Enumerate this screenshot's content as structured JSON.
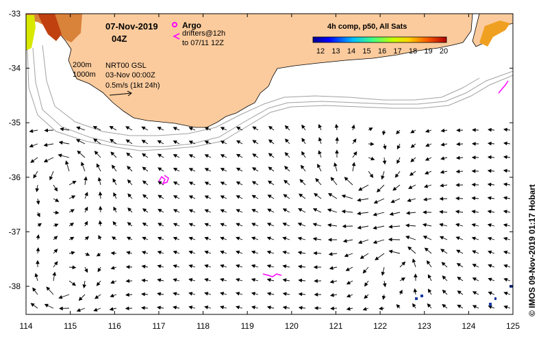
{
  "map": {
    "date": "07-Nov-2019",
    "time": "04Z",
    "legend": {
      "argo_label": "Argo",
      "drifters_label": "drifters@12h",
      "drifters_to": "to 07/11 12Z",
      "isobath_200": "200m",
      "isobath_1000": "1000m",
      "product": "NRT00 GSL",
      "product_date": "03-Nov 00:00Z",
      "scale_label": "0.5m/s (1kt 24h)"
    },
    "colorbar": {
      "title": "4h comp, p50, All Sats",
      "ticks": [
        "12",
        "13",
        "14",
        "15",
        "16",
        "17",
        "18",
        "19",
        "20"
      ]
    },
    "lon_ticks": [
      "114",
      "115",
      "116",
      "117",
      "118",
      "119",
      "120",
      "121",
      "122",
      "123",
      "124",
      "125"
    ],
    "lat_ticks": [
      "-33",
      "-34",
      "-35",
      "-36",
      "-37",
      "-38"
    ],
    "credit": "© IMOS 09-Nov-2019 01:17 Hobart",
    "colors": {
      "land": "#fbcb9d",
      "drifter": "#ff00ff",
      "isobath": "#a0a0a0",
      "argo": "#ff00ff"
    }
  }
}
